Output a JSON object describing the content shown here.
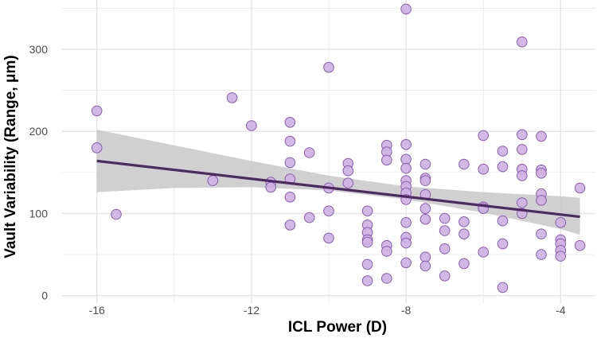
{
  "chart_data": {
    "type": "scatter",
    "xlabel": "ICL Power (D)",
    "ylabel": "Vault Variability (Range, μm)",
    "xlim": [
      -16.9,
      -3.1
    ],
    "ylim": [
      -10,
      360
    ],
    "x_ticks": [
      -16,
      -12,
      -8,
      -4
    ],
    "x_tick_labels": [
      "-16",
      "-12",
      "-8",
      "-4"
    ],
    "y_ticks": [
      0,
      100,
      200,
      300
    ],
    "y_tick_labels": [
      "0",
      "100",
      "200",
      "300"
    ],
    "grid": true,
    "colors": {
      "point_fill": "#cdb2e3",
      "point_stroke": "#8a5bb0",
      "line": "#4e2a63",
      "band": "#c8c8c8",
      "grid": "#e4e4e4"
    },
    "points": [
      [
        -16,
        225
      ],
      [
        -16,
        180
      ],
      [
        -15.5,
        99
      ],
      [
        -13,
        140
      ],
      [
        -12.5,
        241
      ],
      [
        -12,
        207
      ],
      [
        -11.5,
        138
      ],
      [
        -11.5,
        132
      ],
      [
        -11,
        211
      ],
      [
        -11,
        188
      ],
      [
        -11,
        162
      ],
      [
        -11,
        142
      ],
      [
        -11,
        120
      ],
      [
        -11,
        86
      ],
      [
        -10.5,
        174
      ],
      [
        -10.5,
        95
      ],
      [
        -10,
        278
      ],
      [
        -10,
        131
      ],
      [
        -10,
        103
      ],
      [
        -10,
        70
      ],
      [
        -9.5,
        161
      ],
      [
        -9.5,
        152
      ],
      [
        -9.5,
        137
      ],
      [
        -9,
        103
      ],
      [
        -9,
        86
      ],
      [
        -9,
        77
      ],
      [
        -9,
        68
      ],
      [
        -9,
        65
      ],
      [
        -9,
        38
      ],
      [
        -9,
        18
      ],
      [
        -8.5,
        183
      ],
      [
        -8.5,
        175
      ],
      [
        -8.5,
        165
      ],
      [
        -8.5,
        61
      ],
      [
        -8.5,
        54
      ],
      [
        -8.5,
        21
      ],
      [
        -8,
        349
      ],
      [
        -8,
        184
      ],
      [
        -8,
        166
      ],
      [
        -8,
        155
      ],
      [
        -8,
        140
      ],
      [
        -8,
        133
      ],
      [
        -8,
        125
      ],
      [
        -8,
        117
      ],
      [
        -8,
        89
      ],
      [
        -8,
        71
      ],
      [
        -8,
        64
      ],
      [
        -8,
        40
      ],
      [
        -7.5,
        160
      ],
      [
        -7.5,
        143
      ],
      [
        -7.5,
        140
      ],
      [
        -7.5,
        123
      ],
      [
        -7.5,
        106
      ],
      [
        -7.5,
        93
      ],
      [
        -7.5,
        47
      ],
      [
        -7.5,
        36
      ],
      [
        -7,
        94
      ],
      [
        -7,
        79
      ],
      [
        -7,
        57
      ],
      [
        -7,
        24
      ],
      [
        -6.5,
        160
      ],
      [
        -6.5,
        90
      ],
      [
        -6.5,
        75
      ],
      [
        -6.5,
        39
      ],
      [
        -6,
        195
      ],
      [
        -6,
        154
      ],
      [
        -6,
        108
      ],
      [
        -6,
        106
      ],
      [
        -6,
        53
      ],
      [
        -5.5,
        176
      ],
      [
        -5.5,
        157
      ],
      [
        -5.5,
        91
      ],
      [
        -5.5,
        63
      ],
      [
        -5.5,
        10
      ],
      [
        -5,
        309
      ],
      [
        -5,
        196
      ],
      [
        -5,
        178
      ],
      [
        -5,
        154
      ],
      [
        -5,
        146
      ],
      [
        -5,
        113
      ],
      [
        -5,
        100
      ],
      [
        -4.5,
        194
      ],
      [
        -4.5,
        153
      ],
      [
        -4.5,
        149
      ],
      [
        -4.5,
        124
      ],
      [
        -4.5,
        116
      ],
      [
        -4.5,
        75
      ],
      [
        -4.5,
        50
      ],
      [
        -4,
        89
      ],
      [
        -4,
        68
      ],
      [
        -4,
        63
      ],
      [
        -4,
        55
      ],
      [
        -4,
        48
      ],
      [
        -3.5,
        131
      ],
      [
        -3.5,
        61
      ]
    ],
    "fit_line": {
      "x": [
        -16,
        -3.5
      ],
      "y": [
        164,
        96
      ]
    },
    "ci_band": {
      "x": [
        -16,
        -14,
        -12,
        -10,
        -8,
        -6,
        -4,
        -3.5
      ],
      "upper": [
        202,
        183,
        164,
        146,
        133,
        126,
        121,
        119
      ],
      "lower": [
        126,
        131,
        132,
        128,
        117,
        101,
        81,
        74
      ]
    }
  }
}
